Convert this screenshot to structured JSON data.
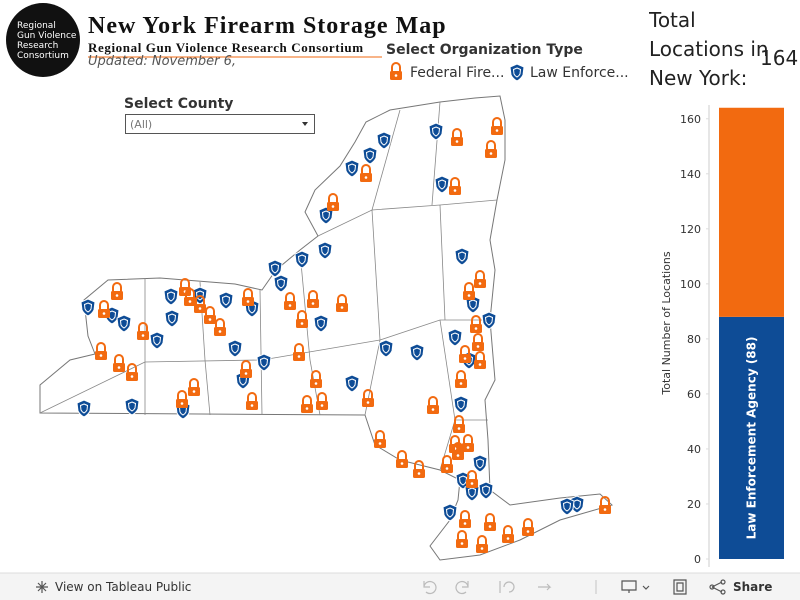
{
  "logo": {
    "lines": [
      "Regional",
      "Gun Violence",
      "Research",
      "Consortium"
    ]
  },
  "header": {
    "title": "New York Firearm Storage Map",
    "subtitle": "Regional Gun Violence Research Consortium",
    "updated": "Updated: November 6,"
  },
  "filter": {
    "label": "Select Organization Type"
  },
  "county_filter": {
    "label": "Select County",
    "value": "(All)"
  },
  "total": {
    "label": "Total Locations in New York:",
    "value": 164
  },
  "chart_data": {
    "type": "stacked-bar",
    "ylabel": "Total Number of Locations",
    "categories": [
      null
    ],
    "series": [
      {
        "name": "Law Enforce...",
        "color": "#0e4c96",
        "values": [
          88
        ],
        "value_labels": [
          "Law Enforcement Agency (88)"
        ]
      },
      {
        "name": "Federal Fire...",
        "color": "#f26a10",
        "values": [
          76
        ]
      }
    ],
    "ylim": [
      0,
      165
    ],
    "yticks": [
      0,
      20,
      40,
      60,
      80,
      100,
      120,
      140,
      160
    ]
  },
  "toolbar": {
    "view": "View on Tableau Public",
    "share": "Share"
  }
}
